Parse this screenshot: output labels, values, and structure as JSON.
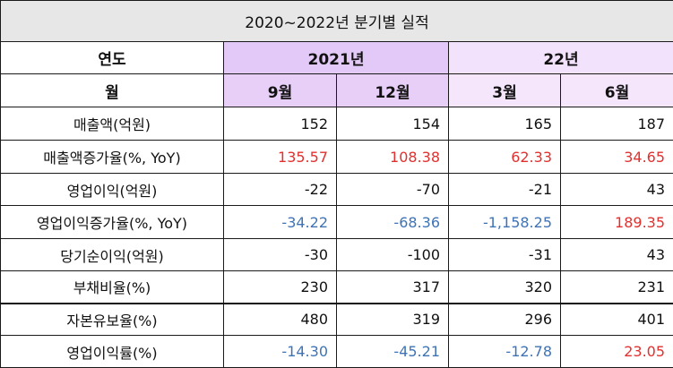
{
  "title": "2020~2022년 분기별 실적",
  "header": {
    "year_label": "연도",
    "month_label": "월",
    "years": [
      "2021년",
      "22년"
    ],
    "months": [
      "9월",
      "12월",
      "3월",
      "6월"
    ]
  },
  "rows": [
    {
      "label": "매출액(억원)",
      "values": [
        "152",
        "154",
        "165",
        "187"
      ],
      "colors": [
        "",
        "",
        "",
        ""
      ]
    },
    {
      "label": "매출액증가율(%, YoY)",
      "values": [
        "135.57",
        "108.38",
        "62.33",
        "34.65"
      ],
      "colors": [
        "red",
        "red",
        "red",
        "red"
      ]
    },
    {
      "label": "영업이익(억원)",
      "values": [
        "-22",
        "-70",
        "-21",
        "43"
      ],
      "colors": [
        "",
        "",
        "",
        ""
      ]
    },
    {
      "label": "영업이익증가율(%, YoY)",
      "values": [
        "-34.22",
        "-68.36",
        "-1,158.25",
        "189.35"
      ],
      "colors": [
        "blue",
        "blue",
        "blue",
        "red"
      ]
    },
    {
      "label": "당기순이익(억원)",
      "values": [
        "-30",
        "-100",
        "-31",
        "43"
      ],
      "colors": [
        "",
        "",
        "",
        ""
      ]
    },
    {
      "label": "부채비율(%)",
      "values": [
        "230",
        "317",
        "320",
        "231"
      ],
      "colors": [
        "",
        "",
        "",
        ""
      ]
    },
    {
      "label": "자본유보율(%)",
      "values": [
        "480",
        "319",
        "296",
        "401"
      ],
      "colors": [
        "",
        "",
        "",
        ""
      ]
    },
    {
      "label": "영업이익률(%)",
      "values": [
        "-14.30",
        "-45.21",
        "-12.78",
        "23.05"
      ],
      "colors": [
        "blue",
        "blue",
        "blue",
        "red"
      ]
    }
  ],
  "colors": {
    "title_bg": "#e7e7e7",
    "year_2021_bg": "#e3c9f7",
    "year_22_bg": "#f3e2fb",
    "positive_growth": "#e0312f",
    "negative_growth": "#3f73b6"
  }
}
